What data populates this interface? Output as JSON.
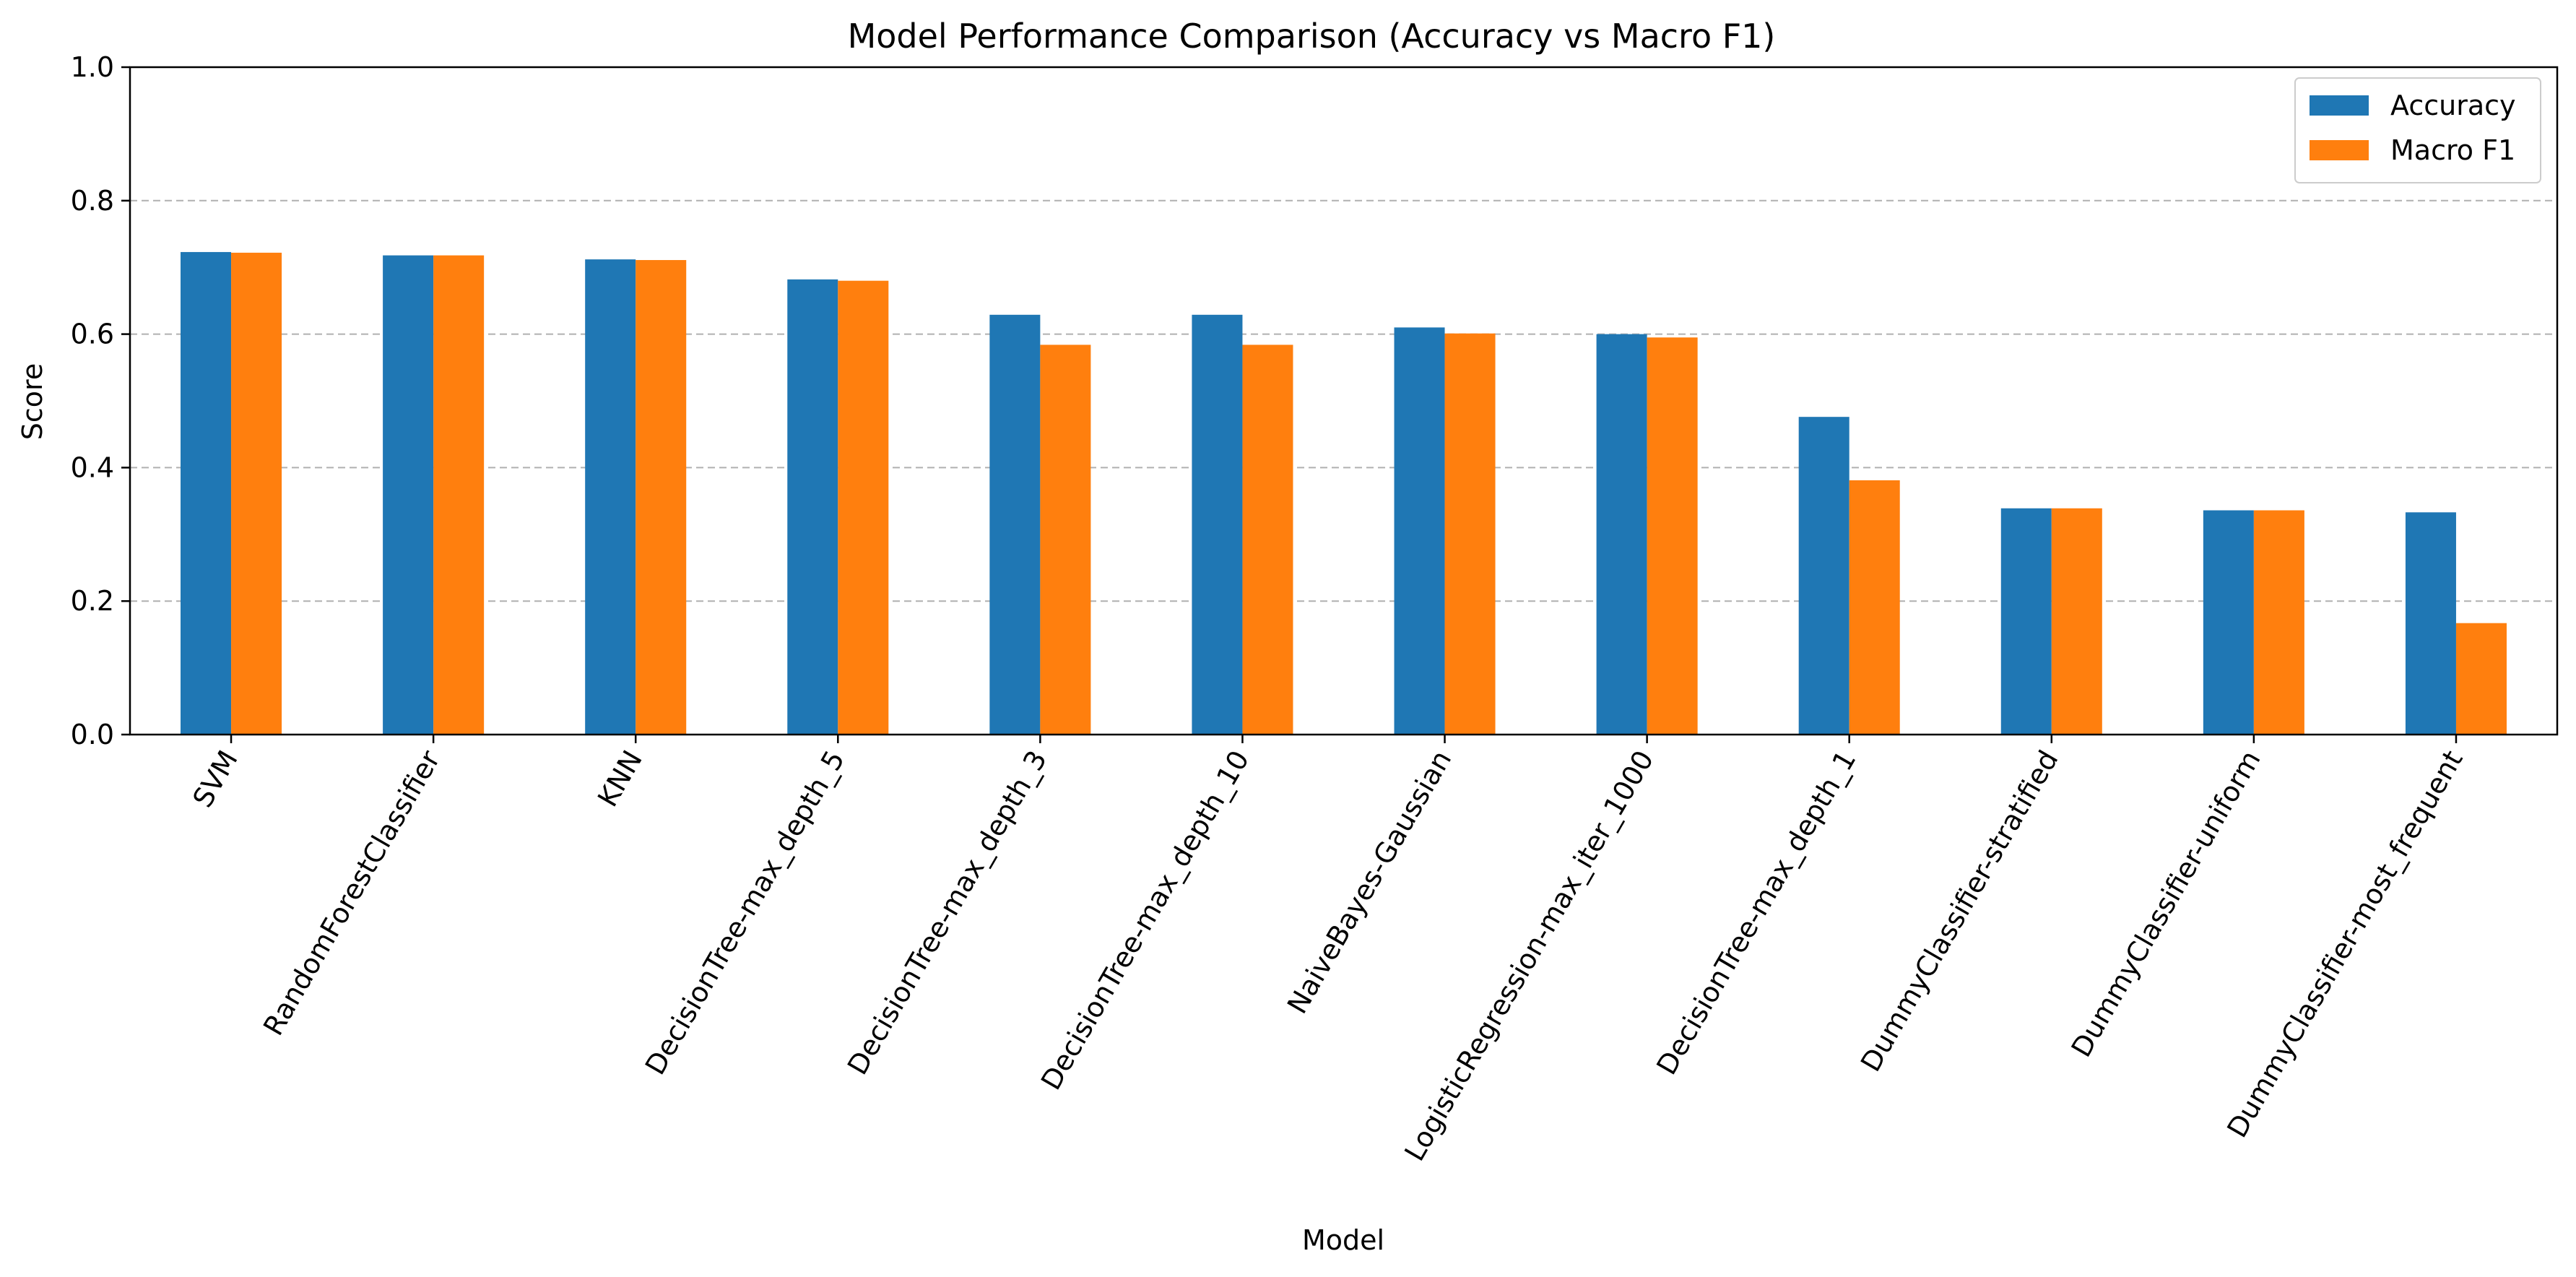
{
  "chart_data": {
    "type": "bar",
    "title": "Model Performance Comparison (Accuracy vs Macro F1)",
    "xlabel": "Model",
    "ylabel": "Score",
    "ylim": [
      0,
      1.0
    ],
    "yticks": [
      0.0,
      0.2,
      0.4,
      0.6,
      0.8,
      1.0
    ],
    "grid": "y-dashed",
    "legend_position": "top-right",
    "categories": [
      "SVM",
      "RandomForestClassifier",
      "KNN",
      "DecisionTree-max_depth_5",
      "DecisionTree-max_depth_3",
      "DecisionTree-max_depth_10",
      "NaiveBayes-Gaussian",
      "LogisticRegression-max_iter_1000",
      "DecisionTree-max_depth_1",
      "DummyClassifier-stratified",
      "DummyClassifier-uniform",
      "DummyClassifier-most_frequent"
    ],
    "series": [
      {
        "name": "Accuracy",
        "color": "#1f77b4",
        "values": [
          0.723,
          0.718,
          0.712,
          0.682,
          0.629,
          0.629,
          0.61,
          0.6,
          0.476,
          0.339,
          0.336,
          0.333
        ]
      },
      {
        "name": "Macro F1",
        "color": "#ff7f0e",
        "values": [
          0.722,
          0.718,
          0.711,
          0.68,
          0.584,
          0.584,
          0.601,
          0.595,
          0.381,
          0.339,
          0.336,
          0.167
        ]
      }
    ]
  }
}
